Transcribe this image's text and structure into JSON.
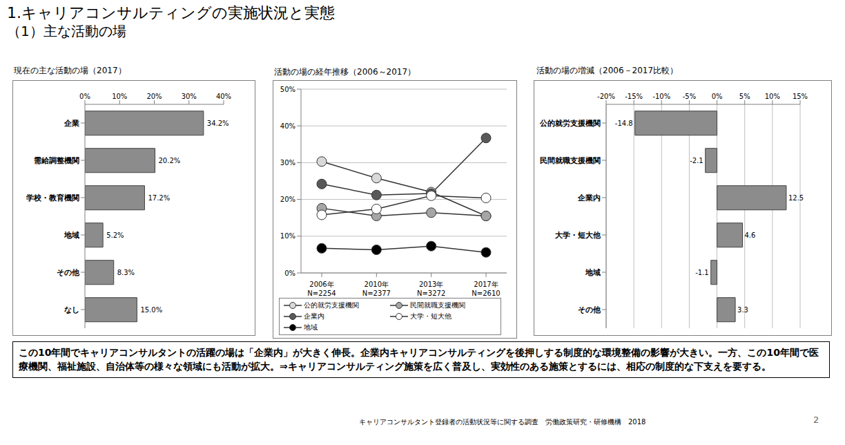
{
  "header": {
    "title": "1.キャリアコンサルティングの実施状況と実態",
    "subtitle": "（1）主な活動の場"
  },
  "chart_data": [
    {
      "type": "bar",
      "title": "現在の主な活動の場（2017）",
      "orientation": "horizontal",
      "categories": [
        "企業",
        "需給調整機関",
        "学校・教育機関",
        "地域",
        "その他",
        "なし"
      ],
      "values": [
        34.2,
        20.2,
        17.2,
        5.2,
        8.3,
        15.0
      ],
      "value_labels": [
        "34.2%",
        "20.2%",
        "17.2%",
        "5.2%",
        "8.3%",
        "15.0%"
      ],
      "data_labels": true,
      "color": "#8c8c8c",
      "xlim": [
        0,
        40
      ],
      "xticks": [
        {
          "value": 0,
          "label": "0%"
        },
        {
          "value": 10,
          "label": "10%"
        },
        {
          "value": 20,
          "label": "20%"
        },
        {
          "value": 30,
          "label": "30%"
        },
        {
          "value": 40,
          "label": "40%"
        }
      ],
      "grid": false
    },
    {
      "type": "line",
      "title": "活動の場の経年推移（2006～2017）",
      "categories": [
        "2006年\nN=2254",
        "2010年\nN=2377",
        "2013年\nN=3272",
        "2017年\nN=2610"
      ],
      "series": [
        {
          "name": "公的就労支援機関",
          "color": "#d9d9d9",
          "marker": "circle",
          "values": [
            30.3,
            25.8,
            22.0,
            15.5
          ]
        },
        {
          "name": "民間就職支援機関",
          "color": "#a6a6a6",
          "marker": "circle",
          "values": [
            17.6,
            15.5,
            16.4,
            15.5
          ]
        },
        {
          "name": "企業内",
          "color": "#595959",
          "marker": "circle",
          "values": [
            24.2,
            21.2,
            21.6,
            36.7
          ]
        },
        {
          "name": "大学・短大他",
          "color": "#ffffff",
          "marker": "circle",
          "values": [
            15.8,
            17.4,
            21.0,
            20.4
          ]
        },
        {
          "name": "地域",
          "color": "#000000",
          "marker": "circle",
          "values": [
            6.7,
            6.3,
            7.3,
            5.6
          ]
        }
      ],
      "ylim": [
        0,
        50
      ],
      "yticks": [
        {
          "value": 0,
          "label": "0%"
        },
        {
          "value": 10,
          "label": "10%"
        },
        {
          "value": 20,
          "label": "20%"
        },
        {
          "value": 30,
          "label": "30%"
        },
        {
          "value": 40,
          "label": "40%"
        },
        {
          "value": 50,
          "label": "50%"
        }
      ],
      "grid": true,
      "legend": "bottom"
    },
    {
      "type": "bar",
      "title": "活動の場の増減（2006－2017比較）",
      "orientation": "horizontal",
      "categories": [
        "公的就労支援機関",
        "民間就職支援機関",
        "企業内",
        "大学・短大他",
        "地域",
        "その他"
      ],
      "values": [
        -14.8,
        -2.1,
        12.5,
        4.6,
        -1.1,
        3.3
      ],
      "data_labels": true,
      "color": "#8c8c8c",
      "xlim": [
        -20,
        15
      ],
      "xticks": [
        {
          "value": -20,
          "label": "-20%"
        },
        {
          "value": -15,
          "label": "-15%"
        },
        {
          "value": -10,
          "label": "-10%"
        },
        {
          "value": -5,
          "label": "-5%"
        },
        {
          "value": 0,
          "label": "0%"
        },
        {
          "value": 5,
          "label": "5%"
        },
        {
          "value": 10,
          "label": "10%"
        },
        {
          "value": 15,
          "label": "15%"
        }
      ],
      "grid": true
    }
  ],
  "note": "この10年間でキャリアコンサルタントの活躍の場は「企業内」が大きく伸長。企業内キャリアコンサルティングを後押しする制度的な環境整備の影響が大きい。一方、この10年間で医療機関、福祉施設、自治体等の様々な領域にも活動が拡大。⇒キャリアコンサルティング施策を広く普及し、実効性のある施策とするには、相応の制度的な下支えを要する。",
  "source": "キャリアコンサルタント登録者の活動状況等に関する調査　労働政策研究・研修機構　2018",
  "page": "2"
}
